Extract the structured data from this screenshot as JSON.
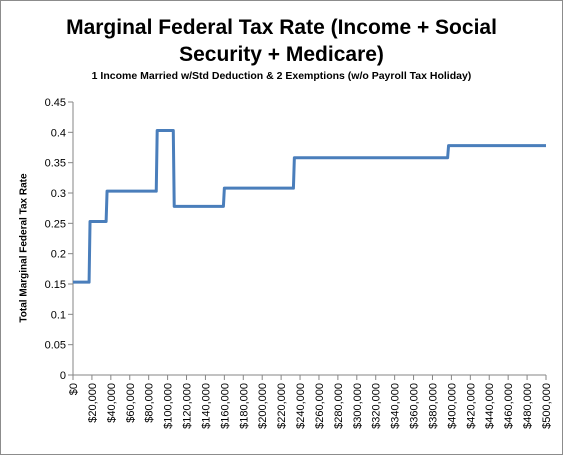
{
  "chart_data": {
    "type": "line",
    "title_lines": [
      "Marginal Federal Tax Rate (Income + Social",
      "Security + Medicare)"
    ],
    "subtitle": "1 Income Married w/Std Deduction & 2 Exemptions (w/o Payroll Tax Holiday)",
    "ylabel": "Total Marginal Federal Tax Rate",
    "xlabel": "",
    "xlim": [
      0,
      500000
    ],
    "ylim": [
      0,
      0.45
    ],
    "grid": false,
    "legend": "none",
    "line_color": "#4a7ebb",
    "y_ticks": [
      "0",
      "0.05",
      "0.1",
      "0.15",
      "0.2",
      "0.25",
      "0.3",
      "0.35",
      "0.4",
      "0.45"
    ],
    "x_ticks": [
      "$0",
      "$20,000",
      "$40,000",
      "$60,000",
      "$80,000",
      "$100,000",
      "$120,000",
      "$140,000",
      "$160,000",
      "$180,000",
      "$200,000",
      "$220,000",
      "$240,000",
      "$260,000",
      "$280,000",
      "$300,000",
      "$320,000",
      "$340,000",
      "$360,000",
      "$380,000",
      "$400,000",
      "$420,000",
      "$440,000",
      "$460,000",
      "$480,000",
      "$500,000"
    ],
    "x_tick_values": [
      0,
      20000,
      40000,
      60000,
      80000,
      100000,
      120000,
      140000,
      160000,
      180000,
      200000,
      220000,
      240000,
      260000,
      280000,
      300000,
      320000,
      340000,
      360000,
      380000,
      400000,
      420000,
      440000,
      460000,
      480000,
      500000
    ],
    "series": [
      {
        "points": [
          [
            0,
            0.153
          ],
          [
            17000,
            0.153
          ],
          [
            18000,
            0.253
          ],
          [
            35000,
            0.253
          ],
          [
            36000,
            0.303
          ],
          [
            88000,
            0.303
          ],
          [
            89000,
            0.403
          ],
          [
            106000,
            0.403
          ],
          [
            107000,
            0.278
          ],
          [
            159000,
            0.278
          ],
          [
            160000,
            0.308
          ],
          [
            233000,
            0.308
          ],
          [
            234000,
            0.358
          ],
          [
            396000,
            0.358
          ],
          [
            397000,
            0.378
          ],
          [
            500000,
            0.378
          ]
        ]
      }
    ]
  }
}
